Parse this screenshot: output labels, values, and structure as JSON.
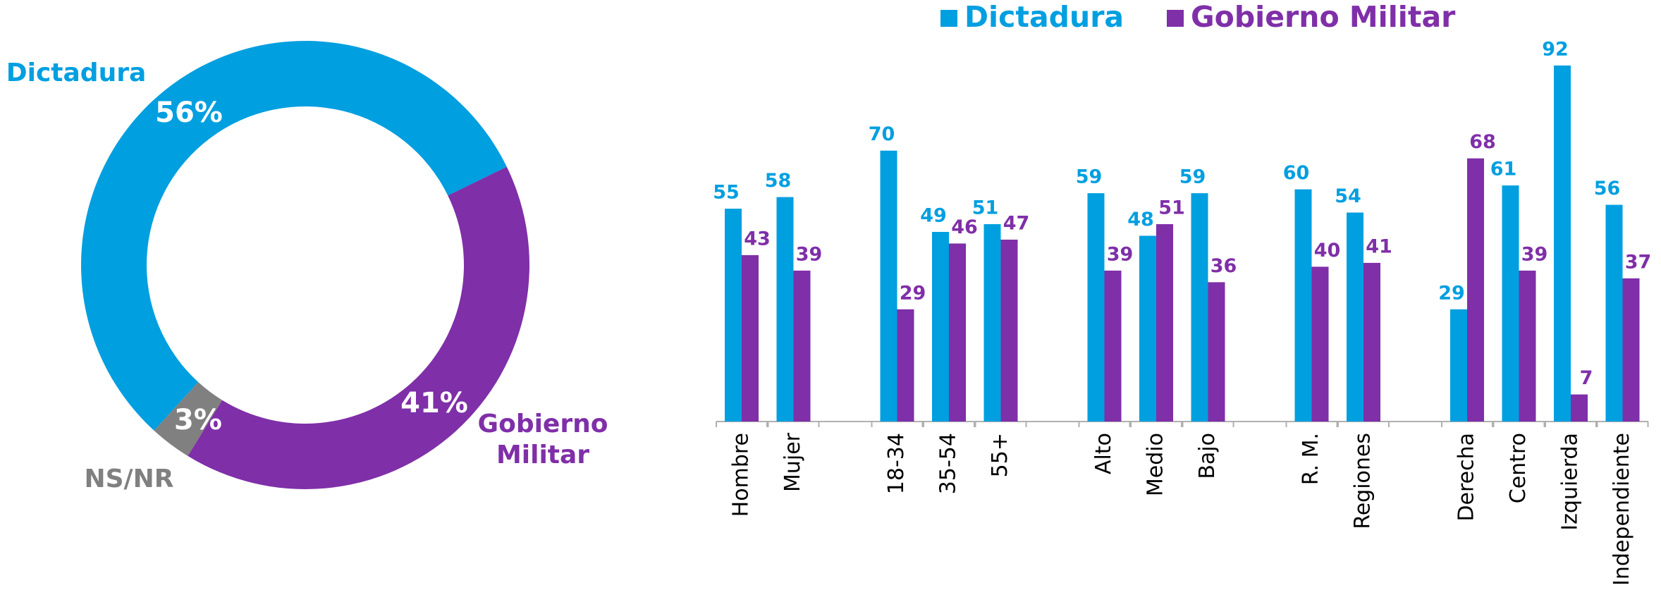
{
  "chart_data": [
    {
      "type": "donut",
      "categories": [
        "Dictadura",
        "Gobierno Militar",
        "NS/NR"
      ],
      "values": [
        56,
        41,
        3
      ],
      "value_labels": [
        "56%",
        "41%",
        "3%"
      ],
      "colors": [
        "#009fe0",
        "#7f2fa8",
        "#808080"
      ]
    },
    {
      "type": "bar",
      "categories": [
        "Hombre",
        "Mujer",
        "18-34",
        "35-54",
        "55+",
        "Alto",
        "Medio",
        "Bajo",
        "R. M.",
        "Regiones",
        "Derecha",
        "Centro",
        "Izquierda",
        "Independiente"
      ],
      "series": [
        {
          "name": "Dictadura",
          "color": "#009fe0",
          "values": [
            55,
            58,
            70,
            49,
            51,
            59,
            48,
            59,
            60,
            54,
            29,
            61,
            92,
            56
          ]
        },
        {
          "name": "Gobierno Militar",
          "color": "#7f2fa8",
          "values": [
            43,
            39,
            29,
            46,
            47,
            39,
            51,
            36,
            40,
            41,
            68,
            39,
            7,
            37
          ]
        }
      ],
      "ylim": [
        0,
        100
      ],
      "legend": "top"
    }
  ]
}
